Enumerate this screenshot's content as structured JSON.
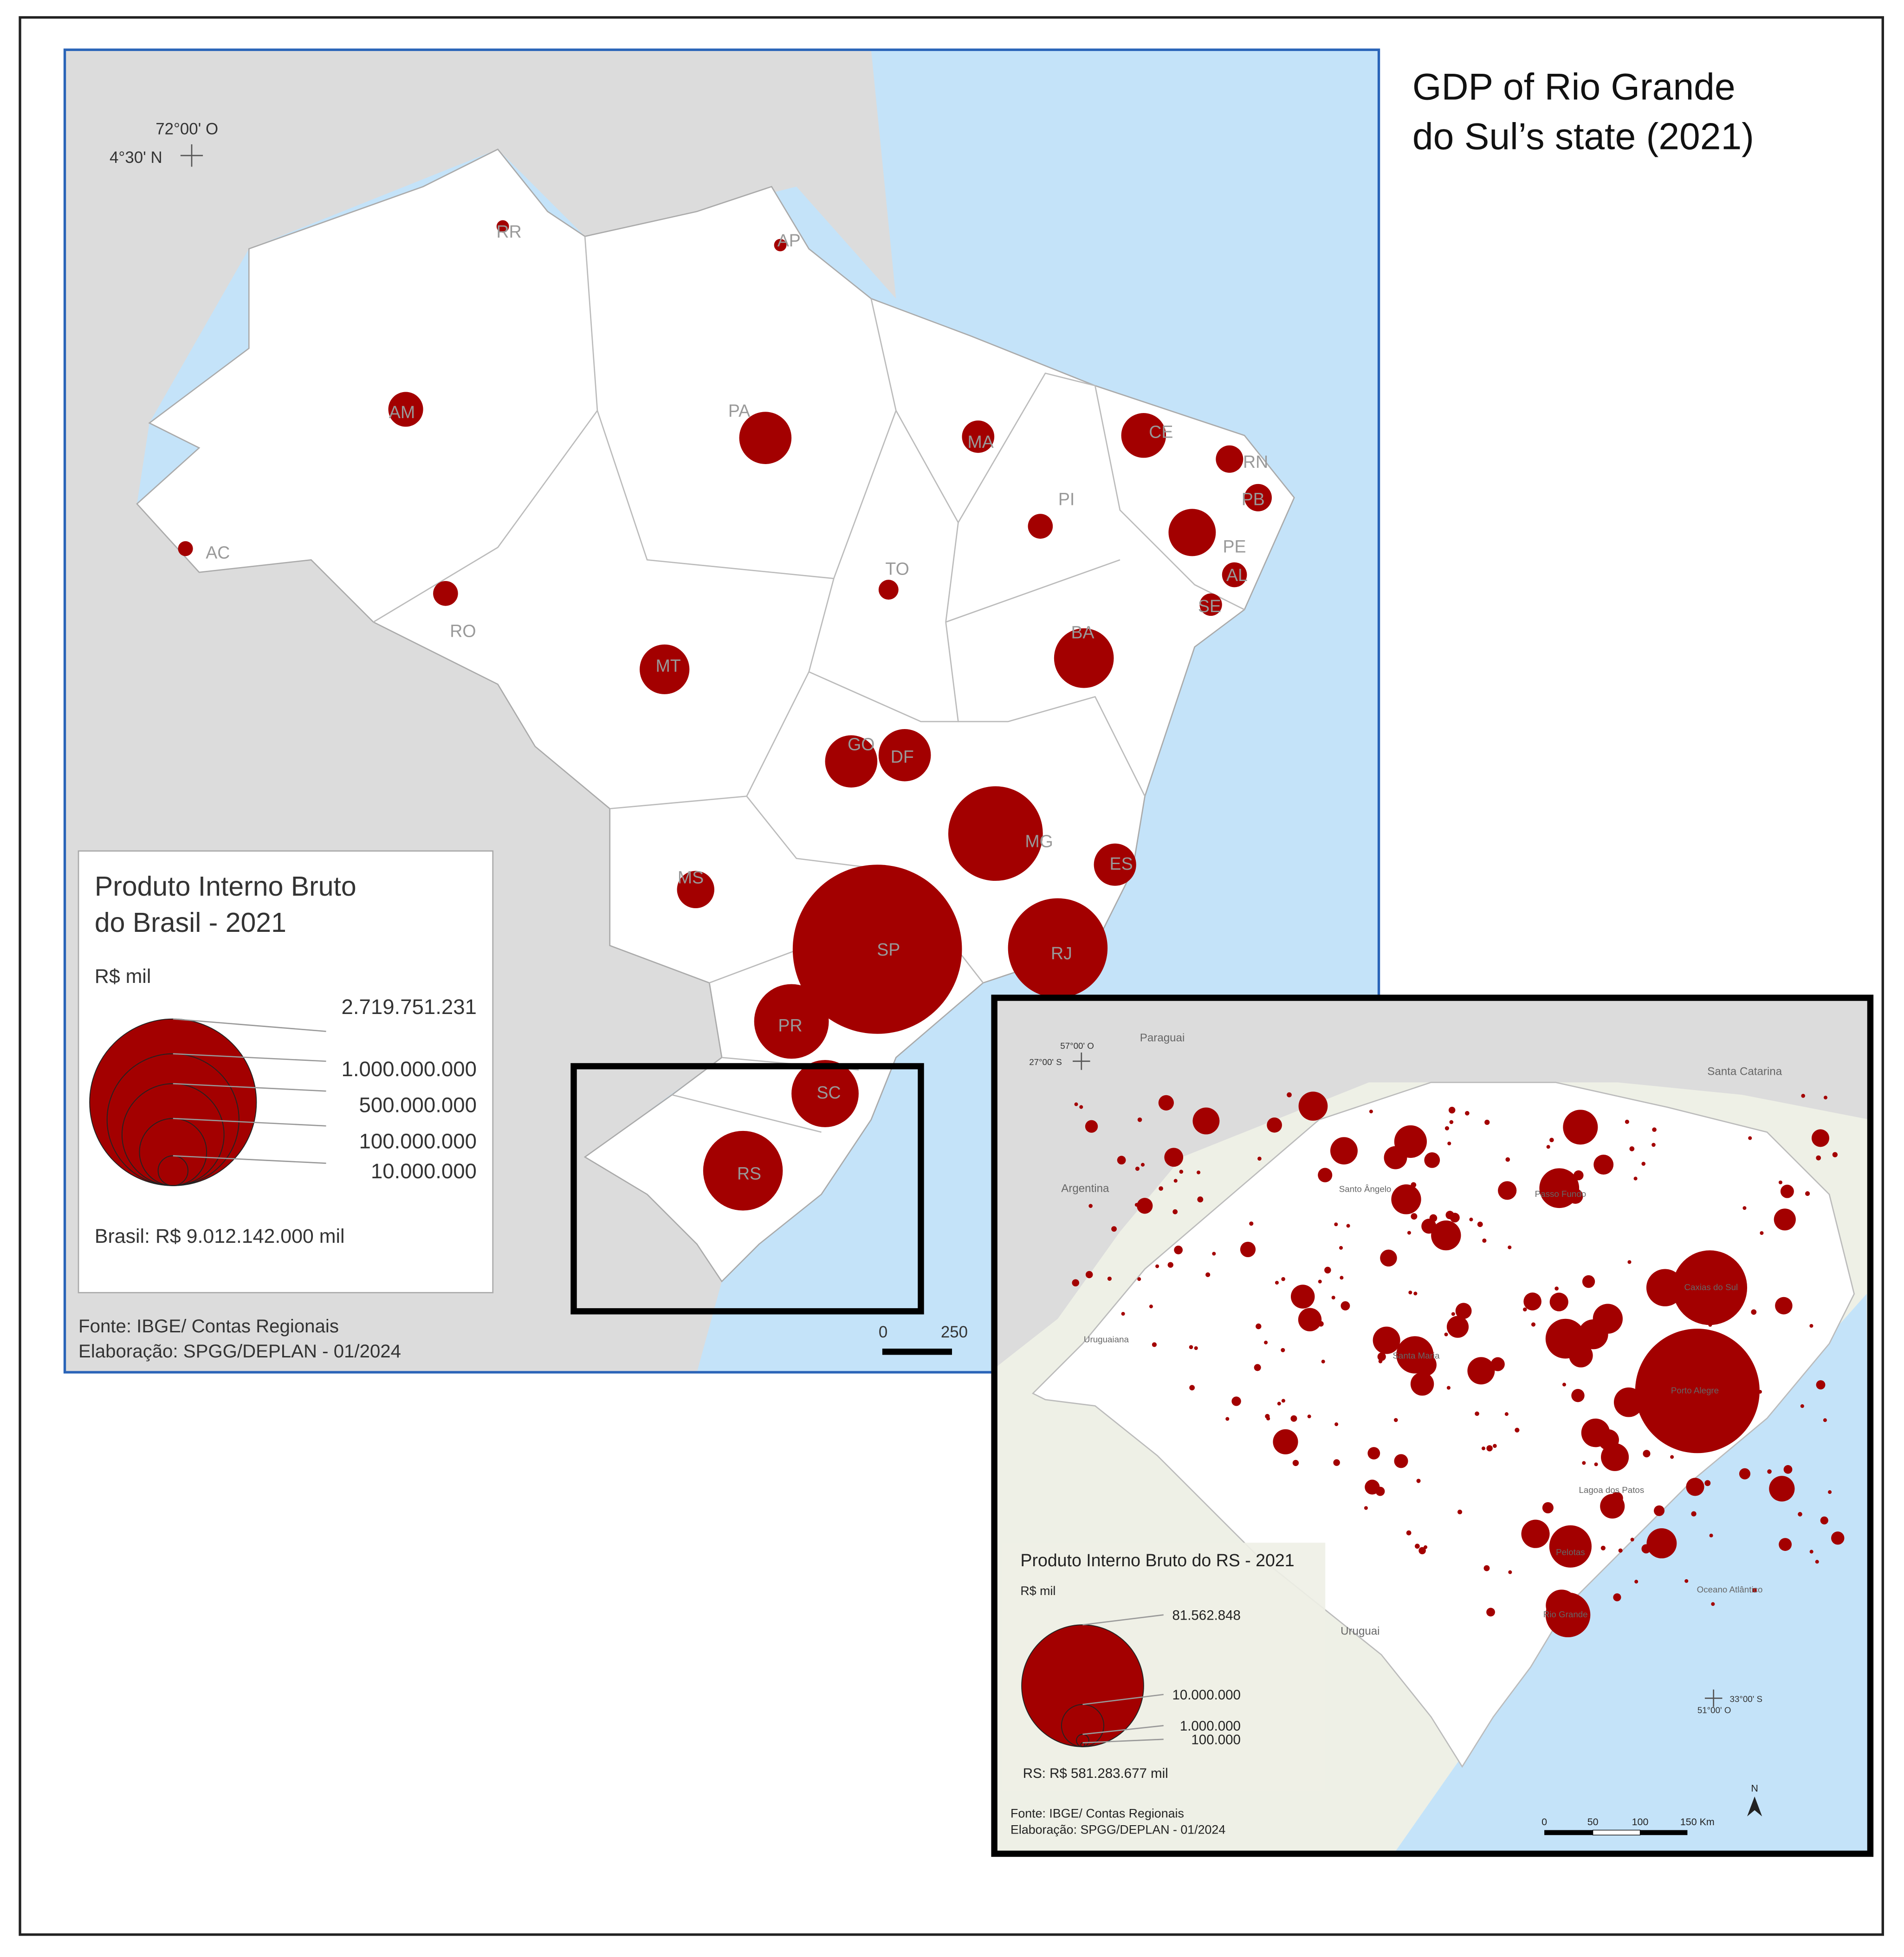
{
  "title_lines": [
    "GDP of Rio Grande",
    "do Sul’s state (2021)"
  ],
  "brazil_map": {
    "coords": [
      "72°00' O",
      "4°30' N"
    ],
    "states": [
      "RR",
      "AP",
      "AM",
      "PA",
      "MA",
      "CE",
      "RN",
      "PB",
      "PI",
      "PE",
      "AL",
      "SE",
      "AC",
      "TO",
      "RO",
      "MT",
      "BA",
      "GO",
      "DF",
      "MG",
      "ES",
      "MS",
      "SP",
      "RJ",
      "PR",
      "SC",
      "RS"
    ],
    "legend": {
      "title_lines": [
        "Produto Interno Bruto",
        "do Brasil - 2021"
      ],
      "unit": "R$ mil",
      "sizes": [
        "2.719.751.231",
        "1.000.000.000",
        "500.000.000",
        "100.000.000",
        "10.000.000"
      ],
      "total": "Brasil: R$ 9.012.142.000 mil"
    },
    "source_lines": [
      "Fonte: IBGE/ Contas Regionais",
      "Elaboração: SPGG/DEPLAN - 01/2024"
    ],
    "scale": [
      "0",
      "250"
    ]
  },
  "rs_map": {
    "coords": [
      "57°00' O",
      "27°00' S",
      "33°00' S",
      "51°00' O"
    ],
    "places": [
      "Paraguai",
      "Santa Catarina",
      "Argentina",
      "Uruguai",
      "Uruguaiana",
      "Santo Ângelo",
      "Passo Fundo",
      "Caxias do Sul",
      "Santa Maria",
      "Porto Alegre",
      "Pelotas",
      "Rio Grande",
      "Lagoa dos Patos",
      "Oceano Atlântico"
    ],
    "legend": {
      "title": "Produto Interno Bruto do RS - 2021",
      "unit": "R$ mil",
      "sizes": [
        "81.562.848",
        "10.000.000",
        "1.000.000",
        "100.000"
      ],
      "total": "RS: R$ 581.283.677 mil"
    },
    "source_lines": [
      "Fonte: IBGE/ Contas Regionais",
      "Elaboração: SPGG/DEPLAN - 01/2024"
    ],
    "scale": [
      "0",
      "50",
      "100",
      "150 Km"
    ],
    "north": "N"
  }
}
